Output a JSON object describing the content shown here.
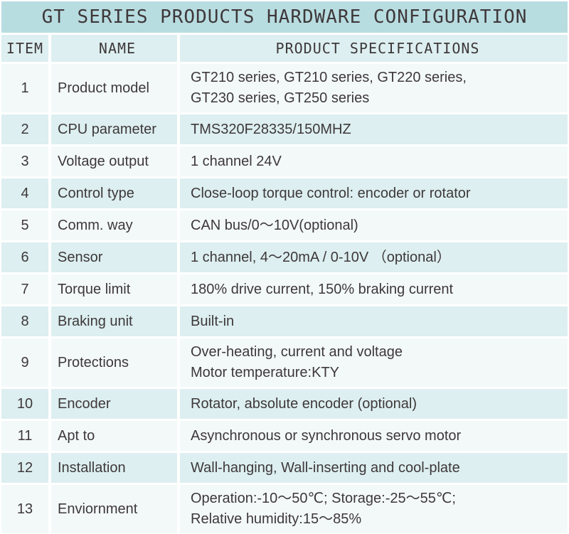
{
  "title": "GT SERIES PRODUCTS HARDWARE CONFIGURATION",
  "columns": {
    "item": "ITEM",
    "name": "NAME",
    "specs": "PRODUCT SPECIFICATIONS"
  },
  "rows": [
    {
      "item": "1",
      "name": "Product model",
      "specs": "GT210 series, GT210 series, GT220 series,\nGT230 series, GT250 series"
    },
    {
      "item": "2",
      "name": "CPU parameter",
      "specs": "TMS320F28335/150MHZ"
    },
    {
      "item": "3",
      "name": "Voltage output",
      "specs": "1 channel 24V"
    },
    {
      "item": "4",
      "name": "Control type",
      "specs": "Close-loop torque control: encoder or rotator"
    },
    {
      "item": "5",
      "name": "Comm. way",
      "specs": "CAN bus/0～10V(optional)"
    },
    {
      "item": "6",
      "name": "Sensor",
      "specs": "1 channel, 4～20mA / 0-10V （optional）"
    },
    {
      "item": "7",
      "name": "Torque limit",
      "specs": "180% drive current, 150% braking current"
    },
    {
      "item": "8",
      "name": "Braking unit",
      "specs": "Built-in"
    },
    {
      "item": "9",
      "name": "Protections",
      "specs": "Over-heating, current and voltage\nMotor temperature:KTY"
    },
    {
      "item": "10",
      "name": "Encoder",
      "specs": "Rotator, absolute encoder (optional)"
    },
    {
      "item": "11",
      "name": "Apt to",
      "specs": "Asynchronous or synchronous servo motor"
    },
    {
      "item": "12",
      "name": "Installation",
      "specs": "Wall-hanging, Wall-inserting and cool-plate"
    },
    {
      "item": "13",
      "name": "Enviornment",
      "specs": "Operation:-10～50℃; Storage:-25～55℃;\nRelative humidity:15～85%"
    }
  ],
  "colors": {
    "title_bar": "#b8dde1",
    "header_row": "#ddeff0",
    "row_even": "#ddeff0",
    "row_odd": "#f3f9f9",
    "grid_gap": "#ffffff",
    "text": "#3e383a"
  }
}
